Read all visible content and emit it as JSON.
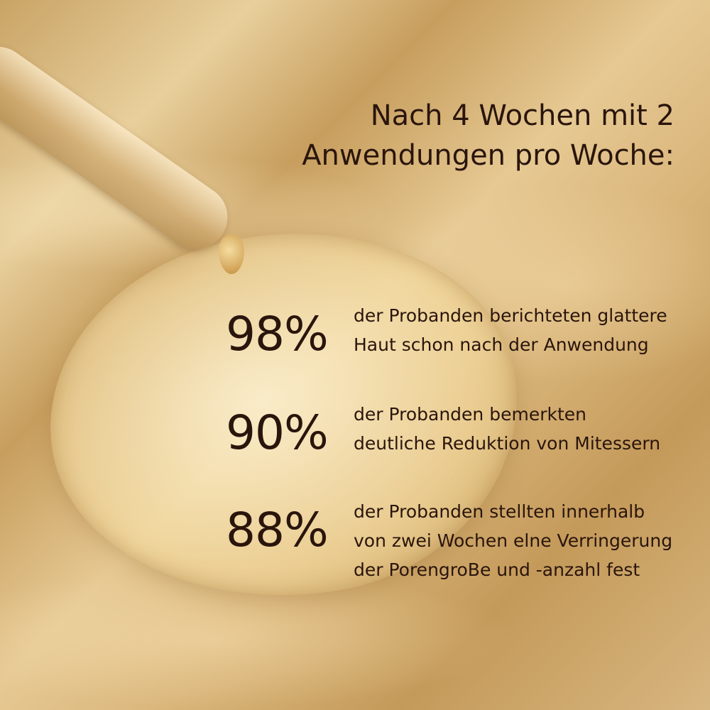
{
  "headline": {
    "line1": "Nach 4 Wochen mit 2",
    "line2": "Anwendungen pro Woche:"
  },
  "stats": [
    {
      "value": "98%",
      "lines": [
        "der Probanden berichteten glattere",
        "Haut schon nach der Anwendung"
      ]
    },
    {
      "value": "90%",
      "lines": [
        "der Probanden bemerkten",
        "deutliche Reduktion von Mitessern"
      ]
    },
    {
      "value": "88%",
      "lines": [
        "der Probanden stellten innerhalb",
        "von zwei Wochen elne Verringerung",
        "der PorengroBe und -anzahl fest"
      ]
    }
  ],
  "colors": {
    "text": "#2a150c",
    "background": "#d9b57a"
  }
}
